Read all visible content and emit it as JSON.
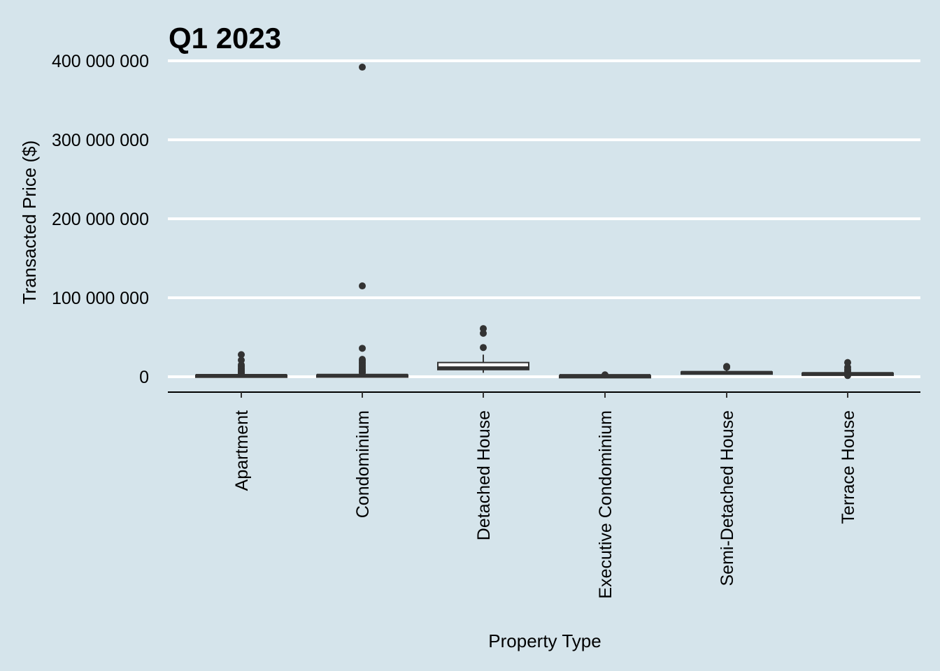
{
  "chart_data": {
    "type": "boxplot",
    "title": "Q1 2023",
    "xlabel": "Property Type",
    "ylabel": "Transacted Price ($)",
    "ylim": [
      -20000000,
      400000000
    ],
    "yticks": [
      0,
      100000000,
      200000000,
      300000000,
      400000000
    ],
    "ytick_labels": [
      "0",
      "100 000 000",
      "200 000 000",
      "300 000 000",
      "400 000 000"
    ],
    "grid": "horizontal major",
    "categories": [
      "Apartment",
      "Condominium",
      "Detached House",
      "Executive Condominium",
      "Semi-Detached House",
      "Terrace House"
    ],
    "boxes": [
      {
        "category": "Apartment",
        "q1": 1000000,
        "median": 1300000,
        "q3": 2000000,
        "whisker_low": 500000,
        "whisker_high": 3500000,
        "outliers": [
          28000000,
          21000000,
          15000000,
          13000000,
          11000000,
          9000000,
          7500000,
          6000000,
          5000000,
          4200000
        ]
      },
      {
        "category": "Condominium",
        "q1": 1100000,
        "median": 1500000,
        "q3": 2200000,
        "whisker_low": 500000,
        "whisker_high": 4000000,
        "outliers": [
          392000000,
          115000000,
          36000000,
          22000000,
          20000000,
          18000000,
          16000000,
          14000000,
          12000000,
          10000000,
          8500000,
          7000000,
          6000000,
          5000000
        ]
      },
      {
        "category": "Detached House",
        "q1": 9000000,
        "median": 11000000,
        "q3": 18000000,
        "whisker_low": 5000000,
        "whisker_high": 28000000,
        "outliers": [
          61000000,
          55000000,
          37000000
        ]
      },
      {
        "category": "Executive Condominium",
        "q1": 1000000,
        "median": 1200000,
        "q3": 1400000,
        "whisker_low": 800000,
        "whisker_high": 1800000,
        "outliers": [
          2400000
        ]
      },
      {
        "category": "Semi-Detached House",
        "q1": 4500000,
        "median": 5200000,
        "q3": 6000000,
        "whisker_low": 3500000,
        "whisker_high": 8000000,
        "outliers": [
          13000000,
          12000000
        ]
      },
      {
        "category": "Terrace House",
        "q1": 3300000,
        "median": 3800000,
        "q3": 4500000,
        "whisker_low": 2800000,
        "whisker_high": 6000000,
        "outliers": [
          18000000,
          12000000,
          9000000,
          7000000,
          2200000,
          1500000
        ]
      }
    ]
  }
}
